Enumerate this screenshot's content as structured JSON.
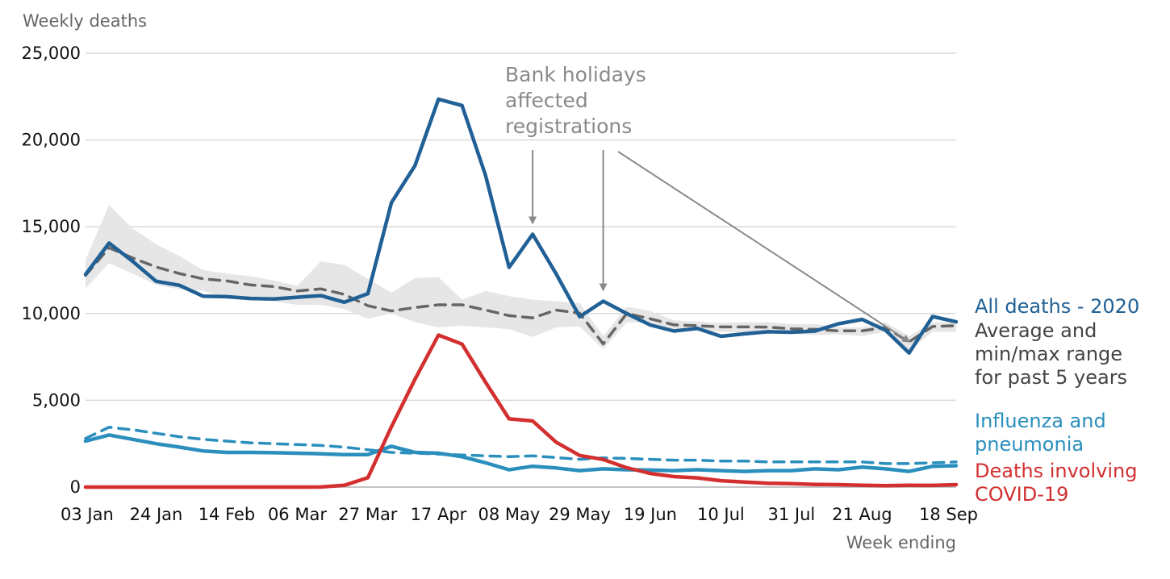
{
  "chart_data": {
    "type": "line",
    "title": "",
    "ylabel": "Weekly deaths",
    "xlabel": "Week ending",
    "ylim": [
      0,
      25000
    ],
    "yticks": [
      0,
      5000,
      10000,
      15000,
      20000,
      25000
    ],
    "ytick_labels": [
      "0",
      "5,000",
      "10,000",
      "15,000",
      "20,000",
      "25,000"
    ],
    "xtick_labels": [
      "03 Jan",
      "24 Jan",
      "14 Feb",
      "06 Mar",
      "27 Mar",
      "17 Apr",
      "08 May",
      "29 May",
      "19 Jun",
      "10 Jul",
      "31 Jul",
      "21 Aug",
      "18 Sep"
    ],
    "x": [
      "03 Jan",
      "10 Jan",
      "17 Jan",
      "24 Jan",
      "31 Jan",
      "07 Feb",
      "14 Feb",
      "21 Feb",
      "28 Feb",
      "06 Mar",
      "13 Mar",
      "20 Mar",
      "27 Mar",
      "03 Apr",
      "10 Apr",
      "17 Apr",
      "24 Apr",
      "01 May",
      "08 May",
      "15 May",
      "22 May",
      "29 May",
      "05 Jun",
      "12 Jun",
      "19 Jun",
      "26 Jun",
      "03 Jul",
      "10 Jul",
      "17 Jul",
      "24 Jul",
      "31 Jul",
      "07 Aug",
      "14 Aug",
      "21 Aug",
      "28 Aug",
      "04 Sep",
      "11 Sep",
      "18 Sep"
    ],
    "grid": "horizontal",
    "series": [
      {
        "name": "All deaths - 2020",
        "color": "#206095",
        "style": "solid",
        "values": [
          12250,
          14060,
          13010,
          11860,
          11620,
          11000,
          10970,
          10870,
          10840,
          10940,
          11030,
          10650,
          11140,
          16390,
          18520,
          22350,
          21990,
          17950,
          12660,
          14570,
          12290,
          9820,
          10710,
          10000,
          9340,
          8990,
          9140,
          8690,
          8830,
          8950,
          8920,
          8990,
          9410,
          9660,
          9040,
          7730,
          9830,
          9520
        ]
      },
      {
        "name": "Average and min/max range for past 5 years",
        "color": "#666666",
        "style": "dashed",
        "values": [
          12200,
          13790,
          13200,
          12680,
          12300,
          12000,
          11880,
          11650,
          11550,
          11300,
          11420,
          11100,
          10450,
          10150,
          10350,
          10500,
          10500,
          10200,
          9880,
          9750,
          10200,
          10020,
          8250,
          10000,
          9700,
          9350,
          9300,
          9230,
          9230,
          9220,
          9120,
          9090,
          9000,
          9000,
          9200,
          8370,
          9250,
          9300
        ],
        "range_min": [
          11450,
          12900,
          12300,
          11650,
          11400,
          11300,
          10900,
          10800,
          10700,
          10500,
          10500,
          10250,
          9700,
          10000,
          9500,
          9200,
          9300,
          9200,
          9100,
          8650,
          9200,
          9250,
          7950,
          9500,
          9450,
          9050,
          9000,
          8950,
          8900,
          8900,
          8850,
          8750,
          8800,
          8700,
          8950,
          7850,
          8950,
          8950
        ],
        "range_max": [
          13100,
          16250,
          14900,
          14000,
          13300,
          12500,
          12300,
          12150,
          11900,
          11600,
          13000,
          12800,
          12000,
          11200,
          12050,
          12100,
          10800,
          11300,
          11000,
          10800,
          10700,
          10600,
          8700,
          10400,
          10150,
          9600,
          9550,
          9450,
          9500,
          9500,
          9400,
          9400,
          9200,
          9200,
          9500,
          8700,
          9500,
          9500
        ]
      },
      {
        "name": "Influenza and pneumonia",
        "color": "#2a8fbd",
        "style": "solid",
        "values": [
          2650,
          3000,
          2750,
          2500,
          2300,
          2080,
          2000,
          2000,
          1980,
          1950,
          1920,
          1870,
          1870,
          2350,
          2000,
          1950,
          1750,
          1400,
          1000,
          1200,
          1100,
          950,
          1050,
          1000,
          980,
          950,
          1000,
          950,
          900,
          950,
          950,
          1050,
          1000,
          1150,
          1050,
          900,
          1200,
          1230
        ]
      },
      {
        "name": "Influenza and pneumonia (5-year average)",
        "color": "#2a8fbd",
        "style": "dashed",
        "values": [
          2800,
          3450,
          3300,
          3100,
          2900,
          2750,
          2650,
          2550,
          2500,
          2450,
          2400,
          2300,
          2150,
          2000,
          1950,
          1900,
          1850,
          1800,
          1750,
          1800,
          1700,
          1600,
          1680,
          1650,
          1600,
          1550,
          1550,
          1500,
          1500,
          1450,
          1450,
          1450,
          1450,
          1450,
          1350,
          1350,
          1400,
          1450
        ]
      },
      {
        "name": "Deaths involving COVID-19",
        "color": "#d32f2f",
        "style": "solid",
        "values": [
          0,
          0,
          0,
          0,
          0,
          0,
          0,
          0,
          0,
          0,
          5,
          103,
          539,
          3475,
          6213,
          8758,
          8237,
          6035,
          3930,
          3810,
          2589,
          1822,
          1588,
          1114,
          783,
          606,
          532,
          366,
          295,
          217,
          193,
          152,
          138,
          101,
          78,
          101,
          99,
          139
        ]
      }
    ],
    "annotation": {
      "lines": [
        "Bank holidays",
        "affected",
        "registrations"
      ],
      "target_weeks": [
        "15 May",
        "05 Jun",
        "04 Sep"
      ]
    },
    "legend": [
      {
        "lines": [
          "All deaths - 2020"
        ],
        "color": "#206095"
      },
      {
        "lines": [
          "Average and",
          "min/max range",
          "for past 5 years"
        ],
        "color": "#444444"
      },
      {
        "lines": [
          "Influenza and",
          "pneumonia"
        ],
        "color": "#2a8fbd"
      },
      {
        "lines": [
          "Deaths involving",
          "COVID-19"
        ],
        "color": "#d32f2f"
      }
    ],
    "legend_placement": "right"
  }
}
